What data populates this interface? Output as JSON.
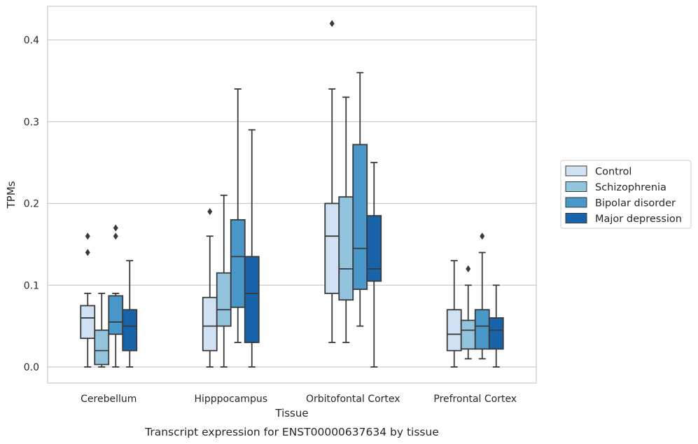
{
  "chart_data": {
    "type": "box",
    "caption": "Transcript expression for ENST00000637634 by tissue",
    "xlabel": "Tissue",
    "ylabel": "TPMs",
    "ylim": [
      -0.02,
      0.44
    ],
    "yticks": [
      0.0,
      0.1,
      0.2,
      0.3,
      0.4
    ],
    "ytick_labels": [
      "0.0",
      "0.1",
      "0.2",
      "0.3",
      "0.4"
    ],
    "grid": "horizontal",
    "legend_position": "right",
    "categories": [
      "Cerebellum",
      "Hipppocampus",
      "Orbitofontal Cortex",
      "Prefrontal Cortex"
    ],
    "series": [
      {
        "name": "Control",
        "color": "#cfe1f2",
        "boxes": [
          {
            "whislo": 0.0,
            "q1": 0.035,
            "med": 0.06,
            "q3": 0.075,
            "whishi": 0.09,
            "fliers": [
              0.14,
              0.16
            ]
          },
          {
            "whislo": 0.0,
            "q1": 0.02,
            "med": 0.05,
            "q3": 0.085,
            "whishi": 0.16,
            "fliers": [
              0.19
            ]
          },
          {
            "whislo": 0.03,
            "q1": 0.09,
            "med": 0.16,
            "q3": 0.2,
            "whishi": 0.34,
            "fliers": [
              0.42
            ]
          },
          {
            "whislo": 0.0,
            "q1": 0.02,
            "med": 0.04,
            "q3": 0.07,
            "whishi": 0.13,
            "fliers": []
          }
        ]
      },
      {
        "name": "Schizophrenia",
        "color": "#93c4de",
        "boxes": [
          {
            "whislo": 0.0,
            "q1": 0.003,
            "med": 0.02,
            "q3": 0.045,
            "whishi": 0.09,
            "fliers": []
          },
          {
            "whislo": 0.0,
            "q1": 0.05,
            "med": 0.07,
            "q3": 0.115,
            "whishi": 0.21,
            "fliers": []
          },
          {
            "whislo": 0.03,
            "q1": 0.082,
            "med": 0.12,
            "q3": 0.208,
            "whishi": 0.33,
            "fliers": []
          },
          {
            "whislo": 0.01,
            "q1": 0.022,
            "med": 0.045,
            "q3": 0.057,
            "whishi": 0.1,
            "fliers": [
              0.12
            ]
          }
        ]
      },
      {
        "name": "Bipolar disorder",
        "color": "#4a98c9",
        "boxes": [
          {
            "whislo": 0.0,
            "q1": 0.04,
            "med": 0.055,
            "q3": 0.087,
            "whishi": 0.09,
            "fliers": [
              0.16,
              0.17
            ]
          },
          {
            "whislo": 0.03,
            "q1": 0.073,
            "med": 0.135,
            "q3": 0.18,
            "whishi": 0.34,
            "fliers": []
          },
          {
            "whislo": 0.05,
            "q1": 0.095,
            "med": 0.145,
            "q3": 0.272,
            "whishi": 0.36,
            "fliers": []
          },
          {
            "whislo": 0.01,
            "q1": 0.022,
            "med": 0.05,
            "q3": 0.07,
            "whishi": 0.14,
            "fliers": [
              0.16
            ]
          }
        ]
      },
      {
        "name": "Major depression",
        "color": "#1764ab",
        "boxes": [
          {
            "whislo": 0.0,
            "q1": 0.02,
            "med": 0.05,
            "q3": 0.07,
            "whishi": 0.13,
            "fliers": []
          },
          {
            "whislo": 0.0,
            "q1": 0.03,
            "med": 0.09,
            "q3": 0.135,
            "whishi": 0.29,
            "fliers": []
          },
          {
            "whislo": 0.0,
            "q1": 0.105,
            "med": 0.12,
            "q3": 0.185,
            "whishi": 0.25,
            "fliers": []
          },
          {
            "whislo": 0.0,
            "q1": 0.022,
            "med": 0.045,
            "q3": 0.06,
            "whishi": 0.1,
            "fliers": []
          }
        ]
      }
    ]
  }
}
